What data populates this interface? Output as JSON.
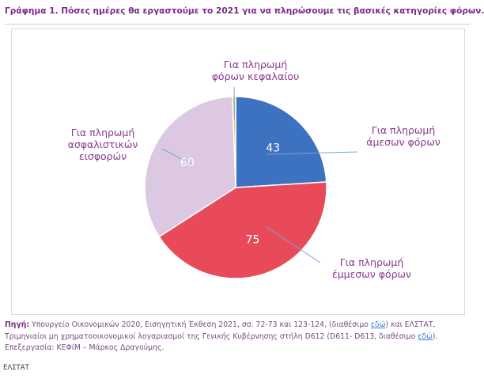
{
  "title": "Γράφημα 1. Πόσες ημέρες θα εργαστούμε το 2021 για να πληρώσουμε τις βασικές κατηγορίες φόρων.",
  "chart_data": {
    "type": "pie",
    "title": "Γράφημα 1. Πόσες ημέρες θα εργαστούμε το 2021 για να πληρώσουμε τις βασικές κατηγορίες φόρων.",
    "slices": [
      {
        "label": "Για πληρωμή άμεσων φόρων",
        "value": 43,
        "value_label": "43",
        "color": "#3d72c1"
      },
      {
        "label": "Για πληρωμή έμμεσων φόρων",
        "value": 75,
        "value_label": "75",
        "color": "#e84a5a"
      },
      {
        "label": "Για πληρωμή ασφαλιστικών εισφορών",
        "value": 60,
        "value_label": "60",
        "color": "#dcc8e0"
      },
      {
        "label": "Για πληρωμή φόρων κεφαλαίου",
        "value": 1,
        "value_label": "",
        "color": "#e2c16a"
      }
    ]
  },
  "labels": {
    "direct": [
      "Για πληρωμή",
      "άμεσων φόρων"
    ],
    "indirect": [
      "Για πληρωμή",
      "έμμεσων φόρων"
    ],
    "insurance": [
      "Για πληρωμή",
      "ασφαλιστικών",
      "εισφορών"
    ],
    "capital": [
      "Για πληρωμή",
      "φόρων κεφαλαίου"
    ]
  },
  "source": {
    "label": "Πηγή:",
    "text1": " Υπουργείο Οικονομικών 2020, Εισηγητική Έκθεση 2021, σσ. 72-73 και 123-124, (διαθέσιμο ",
    "link1": "εδώ",
    "text2": ") και ΕΛΣΤΑΤ, Τριμηνιαίοι μη χρηματοοικονομικοί λογαριασμοί της Γενικής Κυβέρνησης στήλη D612 (D611- D613, διαθέσιμο ",
    "link2": "εδώ",
    "text3": "). Επεξεργασία: ΚΕΦίΜ – Μάρκος Δραγούμης."
  },
  "footer": "ΕΛΣΤΑΤ"
}
